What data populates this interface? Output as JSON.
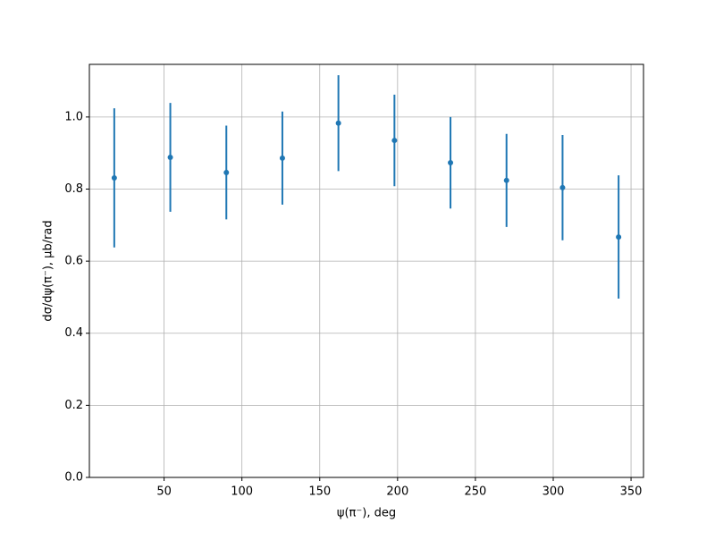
{
  "chart_data": {
    "type": "errorbar",
    "x_label": "ψ(π⁻), deg",
    "y_label": "dσ/dψ(π⁻), μb/rad",
    "x": [
      18,
      54,
      90,
      126,
      162,
      198,
      234,
      270,
      306,
      342
    ],
    "series": [
      {
        "color": "#1f77b4",
        "values": [
          0.831,
          0.888,
          0.846,
          0.886,
          0.983,
          0.935,
          0.873,
          0.824,
          0.804,
          0.667
        ],
        "errors": [
          0.193,
          0.151,
          0.13,
          0.129,
          0.133,
          0.127,
          0.127,
          0.129,
          0.146,
          0.171
        ]
      }
    ],
    "xlim": [
      2,
      358
    ],
    "xticks": [
      50,
      100,
      150,
      200,
      250,
      300,
      350
    ],
    "ylim": [
      0,
      1.146
    ],
    "yticks": [
      {
        "value": 0,
        "label": "0.0"
      },
      {
        "value": 0.2,
        "label": "0.2"
      },
      {
        "value": 0.4,
        "label": "0.4"
      },
      {
        "value": 0.6,
        "label": "0.6"
      },
      {
        "value": 0.8,
        "label": "0.8"
      },
      {
        "value": 1.0,
        "label": "1.0"
      }
    ],
    "grid": true
  }
}
